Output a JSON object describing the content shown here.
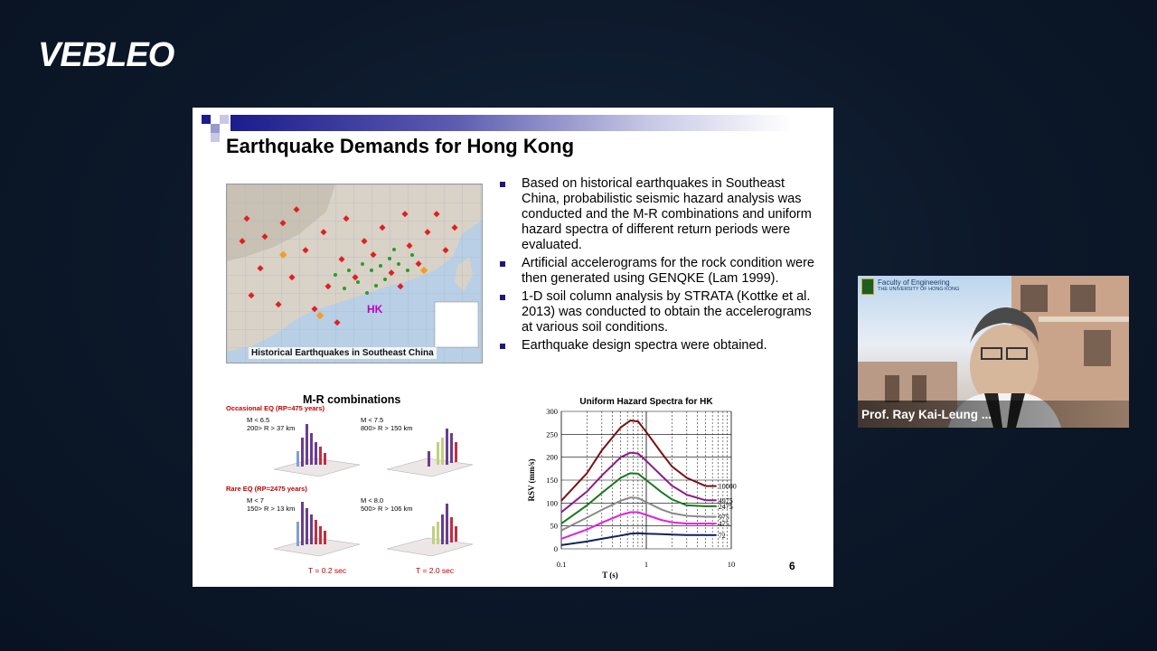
{
  "brand": {
    "logo_text": "VEBLEO"
  },
  "slide": {
    "title": "Earthquake Demands for Hong Kong",
    "page_number": "6",
    "map": {
      "caption": "Historical Earthquakes in Southeast China",
      "hk_label": "HK"
    },
    "bullets": [
      "Based on historical earthquakes in Southeast China, probabilistic seismic hazard analysis was conducted and the M-R combinations and uniform hazard spectra of different return periods were evaluated.",
      "Artificial accelerograms for the rock condition were then generated using GENQKE (Lam 1999).",
      "1-D soil column analysis by STRATA (Kottke et al. 2013) was conducted to obtain the accelerograms at various soil conditions.",
      "Earthquake design spectra were obtained."
    ],
    "mr": {
      "title": "M-R combinations",
      "occasional_label": "Occasional EQ (RP=475 years)",
      "rare_label": "Rare EQ (RP=2475 years)",
      "panels": [
        {
          "m": "M < 6.5",
          "r": "200> R > 37 km"
        },
        {
          "m": "M < 7.5",
          "r": "800> R > 150 km"
        },
        {
          "m": "M < 7",
          "r": "150> R > 13 km"
        },
        {
          "m": "M < 8.0",
          "r": "500> R > 106 km"
        }
      ],
      "t_left": "T = 0.2 sec",
      "t_right": "T = 2.0 sec"
    }
  },
  "chart_data": {
    "type": "line",
    "title": "Uniform Hazard Spectra for HK",
    "xlabel": "T (s)",
    "ylabel": "RSV (mm/s)",
    "x_scale": "log",
    "xlim": [
      0.1,
      10
    ],
    "ylim": [
      0,
      300
    ],
    "x_ticks": [
      "0.1",
      "1",
      "10"
    ],
    "y_ticks": [
      "0",
      "50",
      "100",
      "150",
      "200",
      "250",
      "300"
    ],
    "x": [
      0.1,
      0.2,
      0.3,
      0.5,
      0.65,
      0.8,
      1.0,
      1.5,
      2.0,
      3.0,
      5.0
    ],
    "series": [
      {
        "name": "10000",
        "color": "#7a1010",
        "values": [
          105,
          165,
          215,
          265,
          280,
          278,
          255,
          210,
          180,
          155,
          137
        ]
      },
      {
        "name": "4975",
        "color": "#8b1a8b",
        "values": [
          80,
          125,
          160,
          200,
          210,
          208,
          192,
          160,
          138,
          118,
          106
        ]
      },
      {
        "name": "2475",
        "color": "#1a7a1a",
        "values": [
          55,
          95,
          122,
          155,
          165,
          164,
          150,
          124,
          108,
          95,
          93
        ]
      },
      {
        "name": "975",
        "color": "#8a8a8a",
        "values": [
          40,
          68,
          85,
          105,
          112,
          111,
          102,
          86,
          78,
          72,
          70
        ]
      },
      {
        "name": "475",
        "color": "#e020e0",
        "values": [
          22,
          42,
          57,
          74,
          80,
          80,
          74,
          63,
          58,
          55,
          55
        ]
      },
      {
        "name": "72",
        "color": "#10205e",
        "values": [
          8,
          16,
          22,
          29,
          33,
          34,
          33,
          32,
          31,
          30,
          30
        ]
      }
    ]
  },
  "webcam": {
    "faculty_line1": "Faculty of Engineering",
    "faculty_line2": "THE UNIVERSITY OF HONG KONG",
    "speaker_name": "Prof. Ray Kai-Leung ..."
  }
}
